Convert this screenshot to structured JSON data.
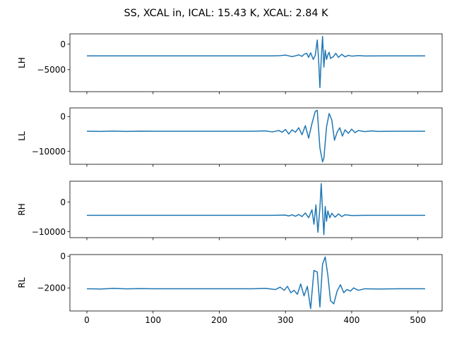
{
  "figure": {
    "title": "SS, XCAL in, ICAL: 15.43 K, XCAL: 2.84 K"
  },
  "style": {
    "line_color": "#1f77b4",
    "axis_color": "#000000",
    "background": "#ffffff"
  },
  "chart_data": [
    {
      "type": "line",
      "ylabel": "LH",
      "xlabel": "",
      "xlim": [
        -25.6,
        536.6
      ],
      "ylim": [
        -9300,
        2000
      ],
      "xticks": [
        0,
        100,
        200,
        300,
        400,
        500
      ],
      "xtick_labels": [
        "",
        "",
        "",
        "",
        "",
        ""
      ],
      "yticks": [
        0,
        -5000
      ],
      "ytick_labels": [
        "0",
        "−5000"
      ],
      "baseline": -2300,
      "series": [
        {
          "x": [
            0,
            100,
            200,
            280,
            290,
            300,
            305,
            310,
            315,
            320,
            325,
            328,
            332,
            335,
            338,
            342,
            345,
            348,
            350,
            352,
            354,
            356,
            358,
            360,
            362,
            364,
            366,
            368,
            372,
            376,
            380,
            385,
            390,
            395,
            400,
            410,
            420,
            450,
            511
          ],
          "values": [
            -2300,
            -2300,
            -2300,
            -2300,
            -2280,
            -2150,
            -2300,
            -2450,
            -2300,
            -2100,
            -2400,
            -2000,
            -1800,
            -2600,
            -1700,
            -3000,
            -2200,
            800,
            -3000,
            -8500,
            -3000,
            1500,
            -4500,
            -1200,
            -3000,
            -2100,
            -1600,
            -2800,
            -2500,
            -1800,
            -2600,
            -2000,
            -2500,
            -2200,
            -2350,
            -2250,
            -2320,
            -2300,
            -2300
          ]
        }
      ]
    },
    {
      "type": "line",
      "ylabel": "LL",
      "xlabel": "",
      "xlim": [
        -25.6,
        536.6
      ],
      "ylim": [
        -13700,
        2500
      ],
      "xticks": [
        0,
        100,
        200,
        300,
        400,
        500
      ],
      "xtick_labels": [
        "",
        "",
        "",
        "",
        "",
        ""
      ],
      "yticks": [
        0,
        -10000
      ],
      "ytick_labels": [
        "0",
        "−10000"
      ],
      "baseline": -4200,
      "series": [
        {
          "x": [
            0,
            20,
            40,
            60,
            80,
            100,
            150,
            200,
            250,
            270,
            280,
            290,
            295,
            300,
            305,
            310,
            315,
            320,
            325,
            330,
            335,
            340,
            345,
            348,
            352,
            356,
            358,
            362,
            366,
            370,
            374,
            378,
            382,
            386,
            390,
            395,
            400,
            405,
            410,
            420,
            430,
            440,
            460,
            511
          ],
          "values": [
            -4200,
            -4250,
            -4150,
            -4250,
            -4180,
            -4200,
            -4200,
            -4200,
            -4200,
            -4100,
            -4400,
            -4000,
            -4500,
            -3700,
            -5000,
            -3800,
            -4500,
            -3200,
            -5200,
            -2600,
            -6200,
            -2000,
            1500,
            1800,
            -9000,
            -13000,
            -12000,
            -3000,
            900,
            -1000,
            -6800,
            -4500,
            -3200,
            -5600,
            -3800,
            -4800,
            -3600,
            -4600,
            -4000,
            -4300,
            -4100,
            -4250,
            -4200,
            -4200
          ]
        }
      ]
    },
    {
      "type": "line",
      "ylabel": "RH",
      "xlabel": "",
      "xlim": [
        -25.6,
        536.6
      ],
      "ylim": [
        -12000,
        7000
      ],
      "xticks": [
        0,
        100,
        200,
        300,
        400,
        500
      ],
      "xtick_labels": [
        "",
        "",
        "",
        "",
        "",
        ""
      ],
      "yticks": [
        0,
        -10000
      ],
      "ytick_labels": [
        "0",
        "−10000"
      ],
      "baseline": -4500,
      "series": [
        {
          "x": [
            0,
            100,
            200,
            280,
            300,
            305,
            310,
            315,
            320,
            325,
            330,
            335,
            340,
            343,
            346,
            349,
            352,
            354,
            356,
            358,
            360,
            362,
            364,
            367,
            370,
            375,
            380,
            385,
            390,
            400,
            420,
            511
          ],
          "values": [
            -4500,
            -4500,
            -4500,
            -4500,
            -4400,
            -4700,
            -4300,
            -4800,
            -4200,
            -4900,
            -3700,
            -5300,
            -2600,
            -7500,
            -1000,
            -10200,
            -2000,
            6200,
            -3000,
            -11000,
            -1500,
            -6500,
            -3000,
            -5300,
            -3800,
            -5100,
            -4000,
            -4900,
            -4300,
            -4550,
            -4480,
            -4500
          ]
        }
      ]
    },
    {
      "type": "line",
      "ylabel": "RL",
      "xlabel": "",
      "xlim": [
        -25.6,
        536.6
      ],
      "ylim": [
        -3450,
        100
      ],
      "xticks": [
        0,
        100,
        200,
        300,
        400,
        500
      ],
      "xtick_labels": [
        "0",
        "100",
        "200",
        "300",
        "400",
        "500"
      ],
      "yticks": [
        0,
        -2000
      ],
      "ytick_labels": [
        "0",
        "−2000"
      ],
      "baseline": -2050,
      "series": [
        {
          "x": [
            0,
            20,
            40,
            60,
            80,
            100,
            150,
            200,
            250,
            270,
            285,
            292,
            298,
            303,
            308,
            313,
            318,
            323,
            328,
            333,
            338,
            343,
            348,
            352,
            356,
            360,
            364,
            368,
            373,
            378,
            383,
            388,
            393,
            398,
            403,
            410,
            420,
            440,
            470,
            511
          ],
          "values": [
            -2050,
            -2070,
            -2030,
            -2060,
            -2040,
            -2050,
            -2050,
            -2050,
            -2050,
            -2030,
            -2100,
            -1950,
            -2150,
            -1900,
            -2300,
            -2150,
            -2400,
            -1750,
            -2500,
            -1900,
            -3300,
            -900,
            -1000,
            -3200,
            -500,
            -50,
            -1200,
            -2800,
            -3000,
            -2200,
            -1800,
            -2300,
            -2100,
            -2200,
            -2000,
            -2150,
            -2050,
            -2070,
            -2050,
            -2050
          ]
        }
      ]
    }
  ]
}
